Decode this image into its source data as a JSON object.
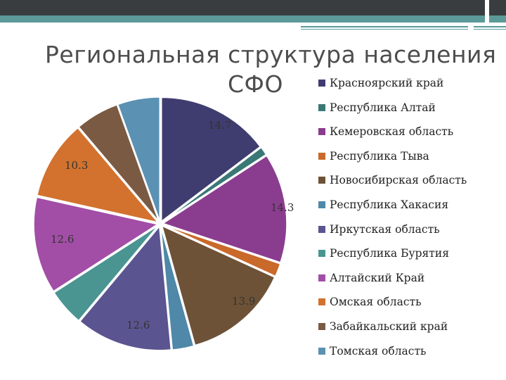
{
  "title_line1": "Региональная структура населения",
  "title_line2": "СФО",
  "chart_data": {
    "type": "pie",
    "title": "Региональная структура населения СФО",
    "legend_position": "right",
    "categories": [
      "Красноярский край",
      "Республика Алтай",
      "Кемеровская область",
      "Республика Тыва",
      "Новосибирская область",
      "Республика Хакасия",
      "Иркутская область",
      "Республика Бурятия",
      "Алтайский Край",
      "Омская область",
      "Забайкальский край",
      "Томская область"
    ],
    "values": [
      14.7,
      1.1,
      14.3,
      1.7,
      13.9,
      2.8,
      12.6,
      4.8,
      12.6,
      10.3,
      5.7,
      5.5
    ],
    "data_labels": [
      "14.7",
      "",
      "14.3",
      "",
      "13.9",
      "",
      "12.6",
      "",
      "12.6",
      "10.3",
      "",
      ""
    ],
    "colors": [
      "#3f3d6f",
      "#3a7876",
      "#8a3d8f",
      "#c9692a",
      "#6e5237",
      "#4f88a8",
      "#5a5590",
      "#4a9492",
      "#a24ea6",
      "#d2722e",
      "#7b5a43",
      "#5b91b3"
    ]
  }
}
